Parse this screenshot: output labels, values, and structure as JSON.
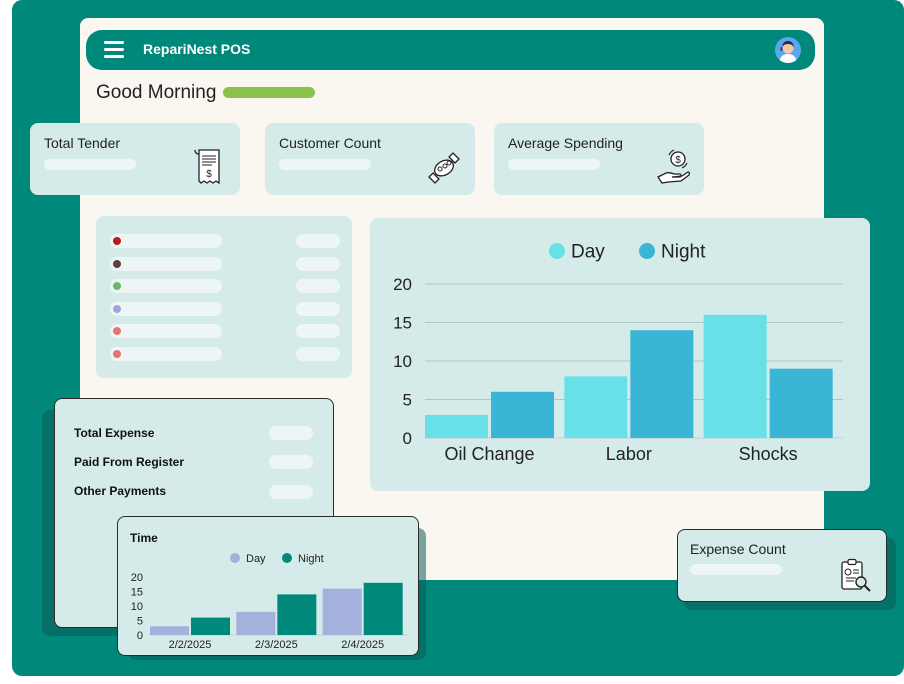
{
  "app": {
    "title": "RepariNest POS"
  },
  "greeting": "Good Morning",
  "stats": [
    {
      "label": "Total Tender",
      "icon": "receipt-icon"
    },
    {
      "label": "Customer Count",
      "icon": "handshake-icon"
    },
    {
      "label": "Average Spending",
      "icon": "money-hand-icon"
    }
  ],
  "legend_dots": [
    "#B71C1C",
    "#5D4037",
    "#66BB6A",
    "#9FA8DA",
    "#E57373",
    "#E57373"
  ],
  "expense": {
    "rows": [
      "Total Expense",
      "Paid From Register",
      "Other Payments"
    ]
  },
  "expense_count": {
    "label": "Expense Count",
    "icon": "clipboard-search-icon"
  },
  "colors": {
    "teal": "#00887A",
    "day": "#67E0E8",
    "night": "#3BB5D6",
    "time_day": "#A3B1DC",
    "time_night": "#00887A"
  },
  "chart_data": [
    {
      "type": "bar",
      "categories": [
        "Oil Change",
        "Labor",
        "Shocks"
      ],
      "series": [
        {
          "name": "Day",
          "values": [
            3,
            8,
            16
          ]
        },
        {
          "name": "Night",
          "values": [
            6,
            14,
            9
          ]
        }
      ],
      "yticks": [
        0,
        5,
        10,
        15,
        20
      ],
      "ylim": [
        0,
        20
      ],
      "legend": "top-center",
      "grid": true
    },
    {
      "type": "bar",
      "title": "Time",
      "categories": [
        "2/2/2025",
        "2/3/2025",
        "2/4/2025"
      ],
      "series": [
        {
          "name": "Day",
          "values": [
            3,
            8,
            16
          ]
        },
        {
          "name": "Night",
          "values": [
            6,
            14,
            18
          ]
        }
      ],
      "yticks": [
        0,
        5,
        10,
        15,
        20
      ],
      "ylim": [
        0,
        20
      ],
      "legend": "top-center",
      "grid": false
    }
  ]
}
